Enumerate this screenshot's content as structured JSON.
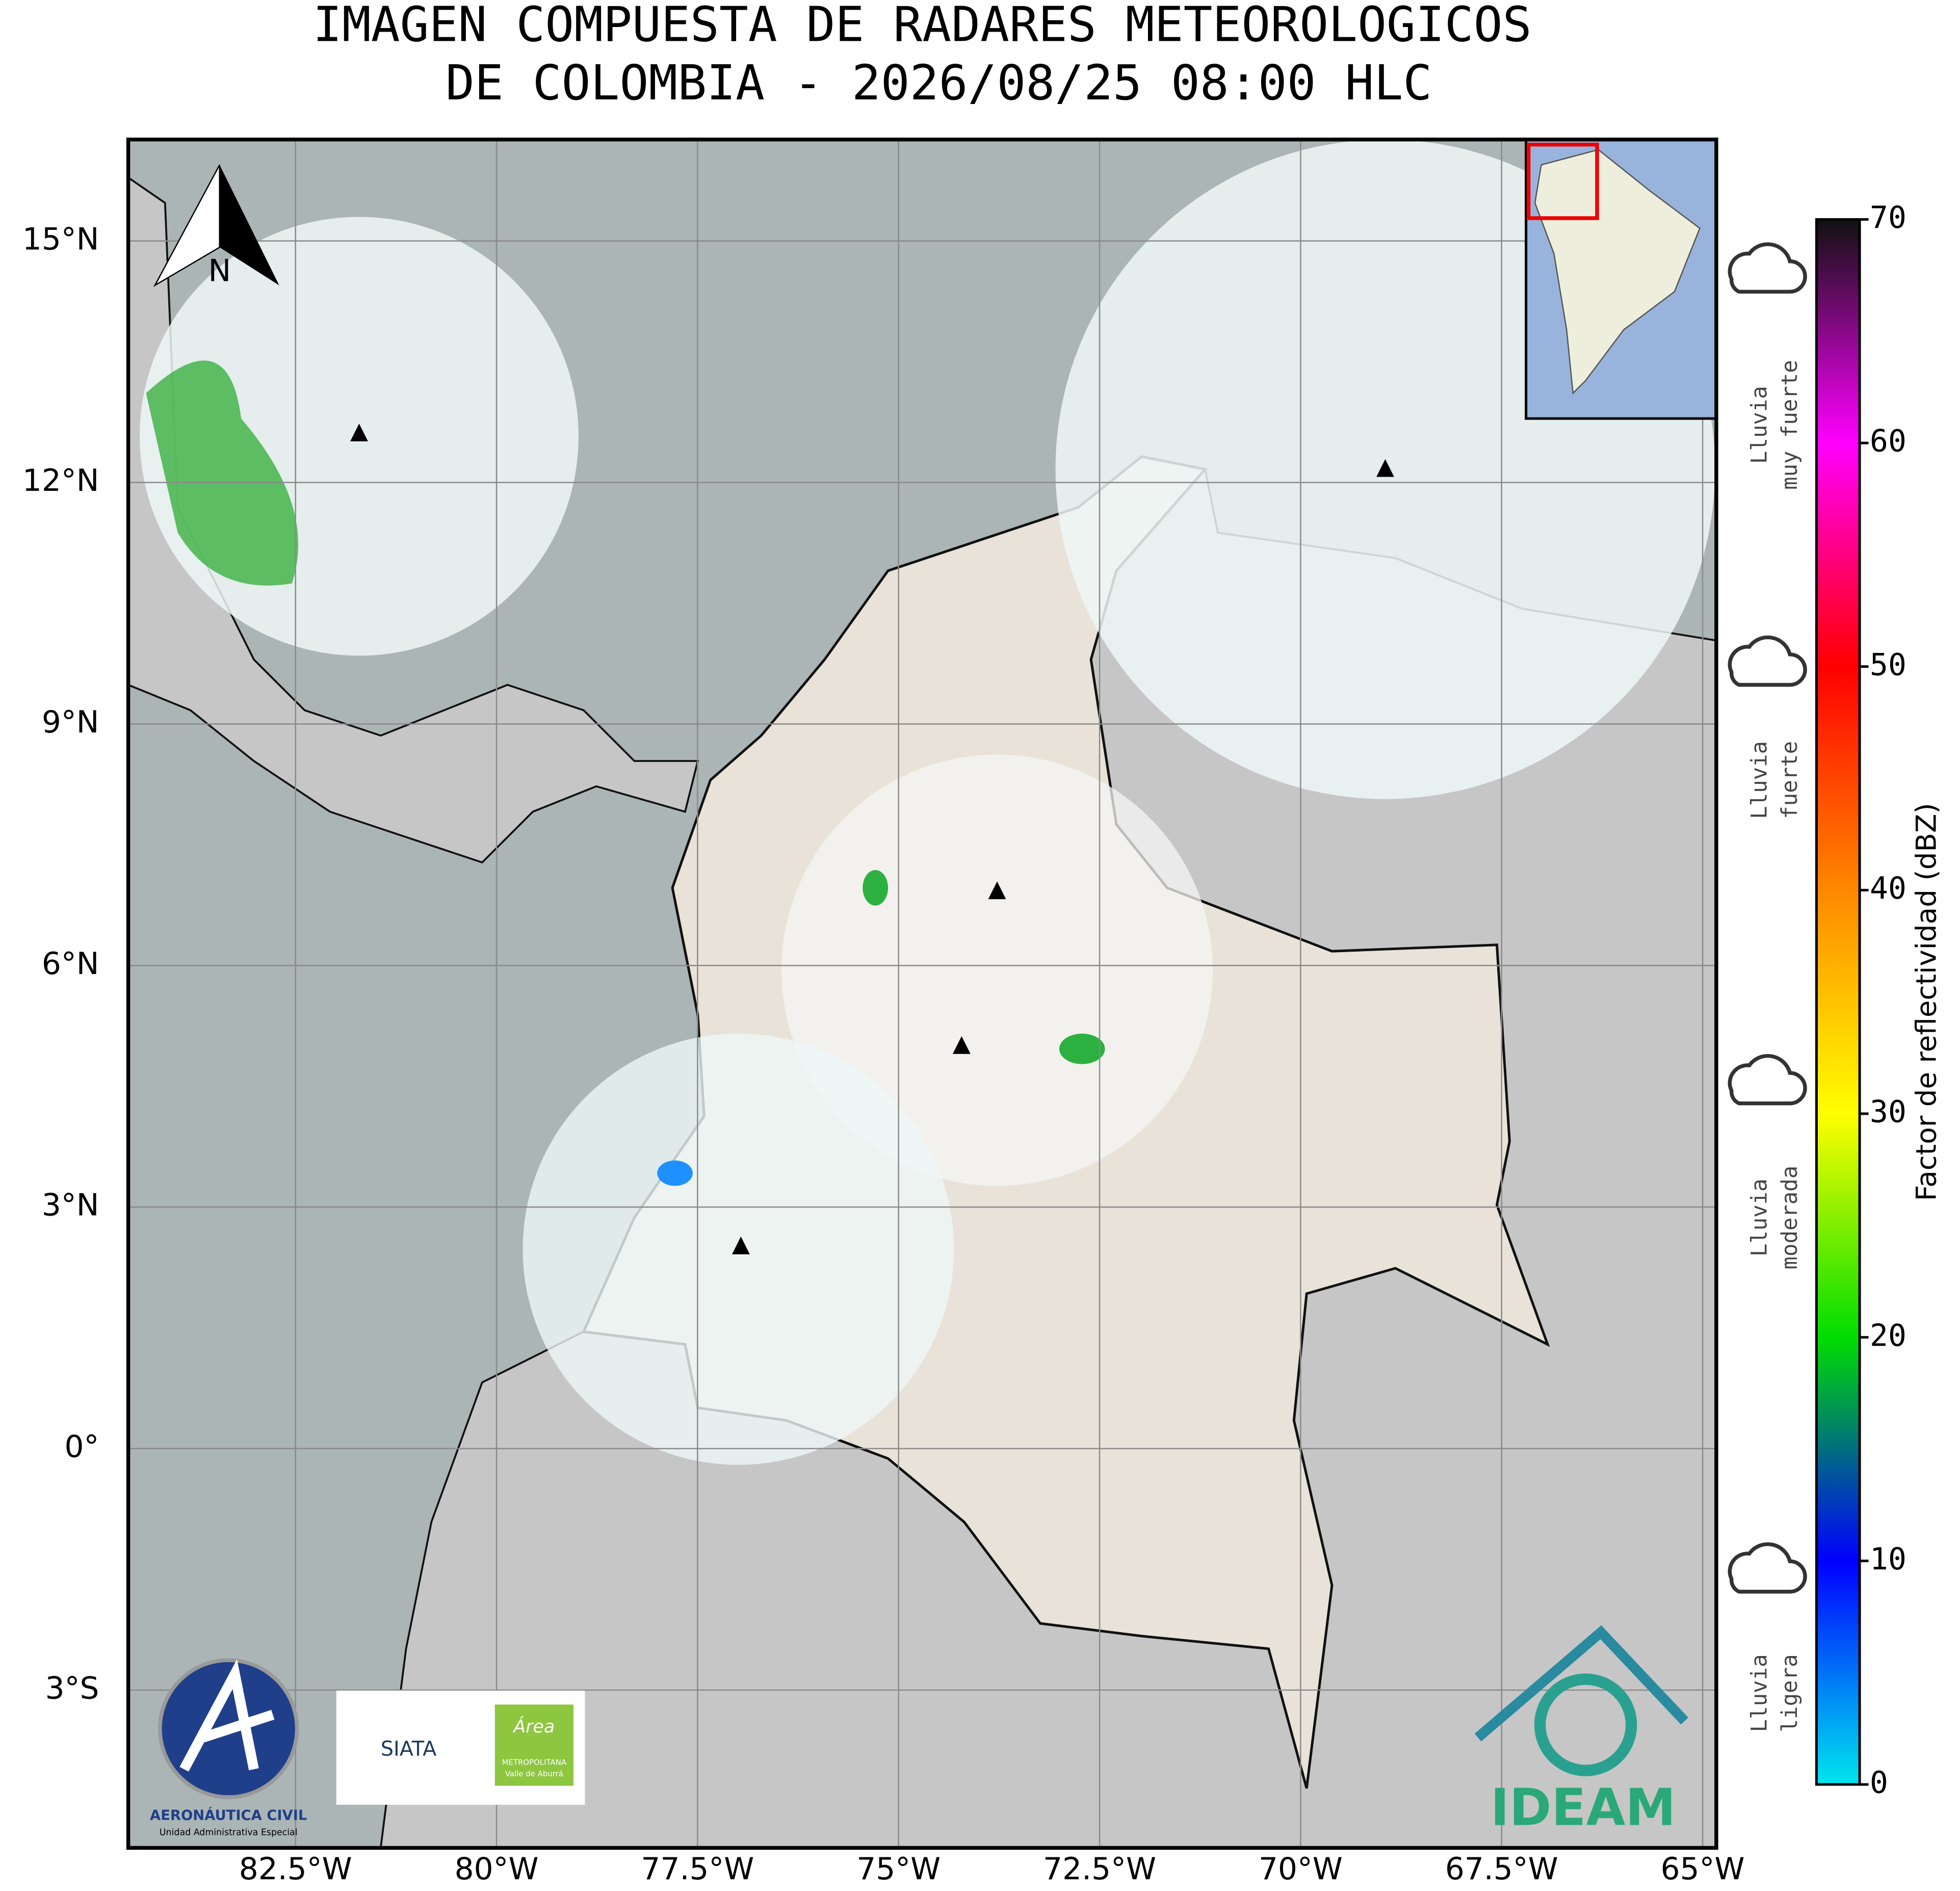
{
  "header": {
    "title": [
      "IMAGEN COMPUESTA DE RADARES METEOROLOGICOS",
      "DE COLOMBIA - 2026/08/25 08:00 HLC"
    ]
  },
  "map": {
    "xlim": [
      -84.58,
      -64.83
    ],
    "ylim": [
      -4.96,
      16.26
    ],
    "xticks": [
      {
        "value": -82.5,
        "label": "82.5°W"
      },
      {
        "value": -80,
        "label": "80°W"
      },
      {
        "value": -77.5,
        "label": "77.5°W"
      },
      {
        "value": -75,
        "label": "75°W"
      },
      {
        "value": -72.5,
        "label": "72.5°W"
      },
      {
        "value": -70,
        "label": "70°W"
      },
      {
        "value": -67.5,
        "label": "67.5°W"
      },
      {
        "value": -65,
        "label": "65°W"
      }
    ],
    "yticks": [
      {
        "value": 15,
        "label": "15°N"
      },
      {
        "value": 12,
        "label": "12°N"
      },
      {
        "value": 9,
        "label": "9°N"
      },
      {
        "value": 6,
        "label": "6°N"
      },
      {
        "value": 3,
        "label": "3°N"
      },
      {
        "value": 0,
        "label": "0°"
      },
      {
        "value": -3,
        "label": "3°S"
      }
    ],
    "grid": true,
    "north": "N"
  },
  "colorbar": {
    "label": "Factor de reflectividad (dBZ)",
    "lim": [
      0,
      70
    ],
    "ticks": [
      0,
      10,
      20,
      30,
      40,
      50,
      60,
      70
    ],
    "colors": [
      "#00e5ee",
      "#0000ff",
      "#00dd00",
      "#ffff00",
      "#ff8800",
      "#ff0000",
      "#ff00ff",
      "#111111"
    ]
  },
  "rain_levels": [
    [
      "Lluvia",
      "muy fuerte"
    ],
    [
      "Lluvia",
      "fuerte"
    ],
    [
      "Lluvia",
      "moderada"
    ],
    [
      "Lluvia",
      "ligera"
    ]
  ],
  "logos": {
    "aerocivil": [
      "AERONÁUTICA CIVIL",
      "Unidad Administrativa Especial"
    ],
    "siata": "SIATA",
    "area": [
      "Área",
      "METROPOLITANA",
      "Valle de Aburrá"
    ],
    "ideam": "IDEAM"
  }
}
